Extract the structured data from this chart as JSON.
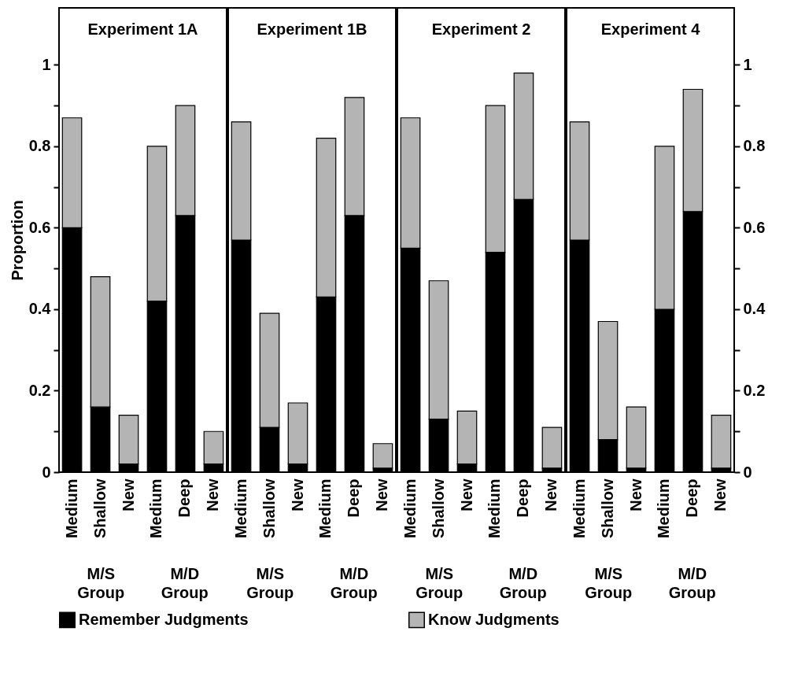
{
  "chart_data": [
    {
      "type": "bar",
      "title": "Experiment 1A",
      "ylabel": "Proportion",
      "stacked": true,
      "legend": "bottom",
      "grid": false,
      "categories": [
        "Medium",
        "Shallow",
        "New",
        "Medium",
        "Deep",
        "New"
      ],
      "series": [
        {
          "name": "Remember Judgments",
          "color": "#000000",
          "values": [
            0.6,
            0.16,
            0.02,
            0.42,
            0.63,
            0.02
          ]
        },
        {
          "name": "Know Judgments",
          "color": "#b4b4b4",
          "values": [
            0.27,
            0.32,
            0.12,
            0.38,
            0.27,
            0.08
          ]
        }
      ],
      "ylim": [
        0,
        1.14
      ],
      "yticks": [
        0,
        {
          "value": 0.1,
          "label": null
        },
        0.2,
        {
          "value": 0.3,
          "label": null
        },
        0.4,
        {
          "value": 0.5,
          "label": null
        },
        0.6,
        {
          "value": 0.7,
          "label": null
        },
        0.8,
        {
          "value": 0.9,
          "label": null
        },
        1
      ],
      "annotations": [
        "M/S Group",
        "M/D Group"
      ]
    },
    {
      "type": "bar",
      "title": "Experiment 1B",
      "stacked": true,
      "legend": "bottom",
      "grid": false,
      "tick_labels": "x",
      "categories": [
        "Medium",
        "Shallow",
        "New",
        "Medium",
        "Deep",
        "New"
      ],
      "series": [
        {
          "name": "Remember Judgments",
          "color": "#000000",
          "values": [
            0.57,
            0.11,
            0.02,
            0.43,
            0.63,
            0.01
          ]
        },
        {
          "name": "Know Judgments",
          "color": "#b4b4b4",
          "values": [
            0.29,
            0.28,
            0.15,
            0.39,
            0.29,
            0.06
          ]
        }
      ],
      "ylim": [
        0,
        1.14
      ],
      "annotations": [
        "M/S Group",
        "M/D Group"
      ]
    },
    {
      "type": "bar",
      "title": "Experiment 2",
      "stacked": true,
      "legend": "bottom",
      "grid": false,
      "tick_labels": "x",
      "categories": [
        "Medium",
        "Shallow",
        "New",
        "Medium",
        "Deep",
        "New"
      ],
      "series": [
        {
          "name": "Remember Judgments",
          "color": "#000000",
          "values": [
            0.55,
            0.13,
            0.02,
            0.54,
            0.67,
            0.01
          ]
        },
        {
          "name": "Know Judgments",
          "color": "#b4b4b4",
          "values": [
            0.32,
            0.34,
            0.13,
            0.36,
            0.31,
            0.1
          ]
        }
      ],
      "ylim": [
        0,
        1.14
      ],
      "annotations": [
        "M/S Group",
        "M/D Group"
      ]
    },
    {
      "type": "bar",
      "title": "Experiment 4",
      "stacked": true,
      "legend": "bottom",
      "grid": false,
      "categories": [
        "Medium",
        "Shallow",
        "New",
        "Medium",
        "Deep",
        "New"
      ],
      "series": [
        {
          "name": "Remember Judgments",
          "color": "#000000",
          "values": [
            0.57,
            0.08,
            0.01,
            0.4,
            0.64,
            0.01
          ]
        },
        {
          "name": "Know Judgments",
          "color": "#b4b4b4",
          "values": [
            0.29,
            0.29,
            0.15,
            0.4,
            0.3,
            0.13
          ]
        }
      ],
      "ylim": [
        0,
        1.14
      ],
      "yticks": [
        0,
        {
          "value": 0.1,
          "label": null
        },
        0.2,
        {
          "value": 0.3,
          "label": null
        },
        0.4,
        {
          "value": 0.5,
          "label": null
        },
        0.6,
        {
          "value": 0.7,
          "label": null
        },
        0.8,
        {
          "value": 0.9,
          "label": null
        },
        1
      ],
      "annotations": [
        "M/S Group",
        "M/D Group"
      ]
    }
  ]
}
